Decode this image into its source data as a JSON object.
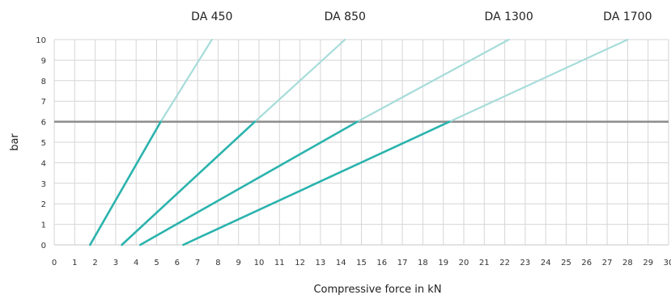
{
  "chart_data": {
    "type": "line",
    "xlabel": "Compressive force in kN",
    "ylabel": "bar",
    "xlim": [
      0,
      30
    ],
    "ylim": [
      0,
      10
    ],
    "x_ticks": [
      0,
      1,
      2,
      3,
      4,
      5,
      6,
      7,
      8,
      9,
      10,
      11,
      12,
      13,
      14,
      15,
      16,
      17,
      18,
      19,
      20,
      21,
      22,
      23,
      24,
      25,
      26,
      27,
      28,
      29,
      30
    ],
    "y_ticks": [
      0,
      1,
      2,
      3,
      4,
      5,
      6,
      7,
      8,
      9,
      10
    ],
    "grid": true,
    "reference_line": {
      "y": 6,
      "color": "#8c8c8c"
    },
    "colors": {
      "dark": "#2bb3ad",
      "light": "#a6dcda",
      "grid": "#d6d6d6"
    },
    "series": [
      {
        "name": "DA 450",
        "points": [
          [
            1.75,
            0
          ],
          [
            5.2,
            6
          ],
          [
            7.7,
            10
          ]
        ]
      },
      {
        "name": "DA 850",
        "points": [
          [
            3.3,
            0
          ],
          [
            9.8,
            6
          ],
          [
            14.2,
            10
          ]
        ]
      },
      {
        "name": "DA 1300",
        "points": [
          [
            4.2,
            0
          ],
          [
            14.8,
            6
          ],
          [
            22.2,
            10
          ]
        ]
      },
      {
        "name": "DA 1700",
        "points": [
          [
            6.3,
            0
          ],
          [
            19.3,
            6
          ],
          [
            28.0,
            10
          ]
        ]
      }
    ]
  }
}
